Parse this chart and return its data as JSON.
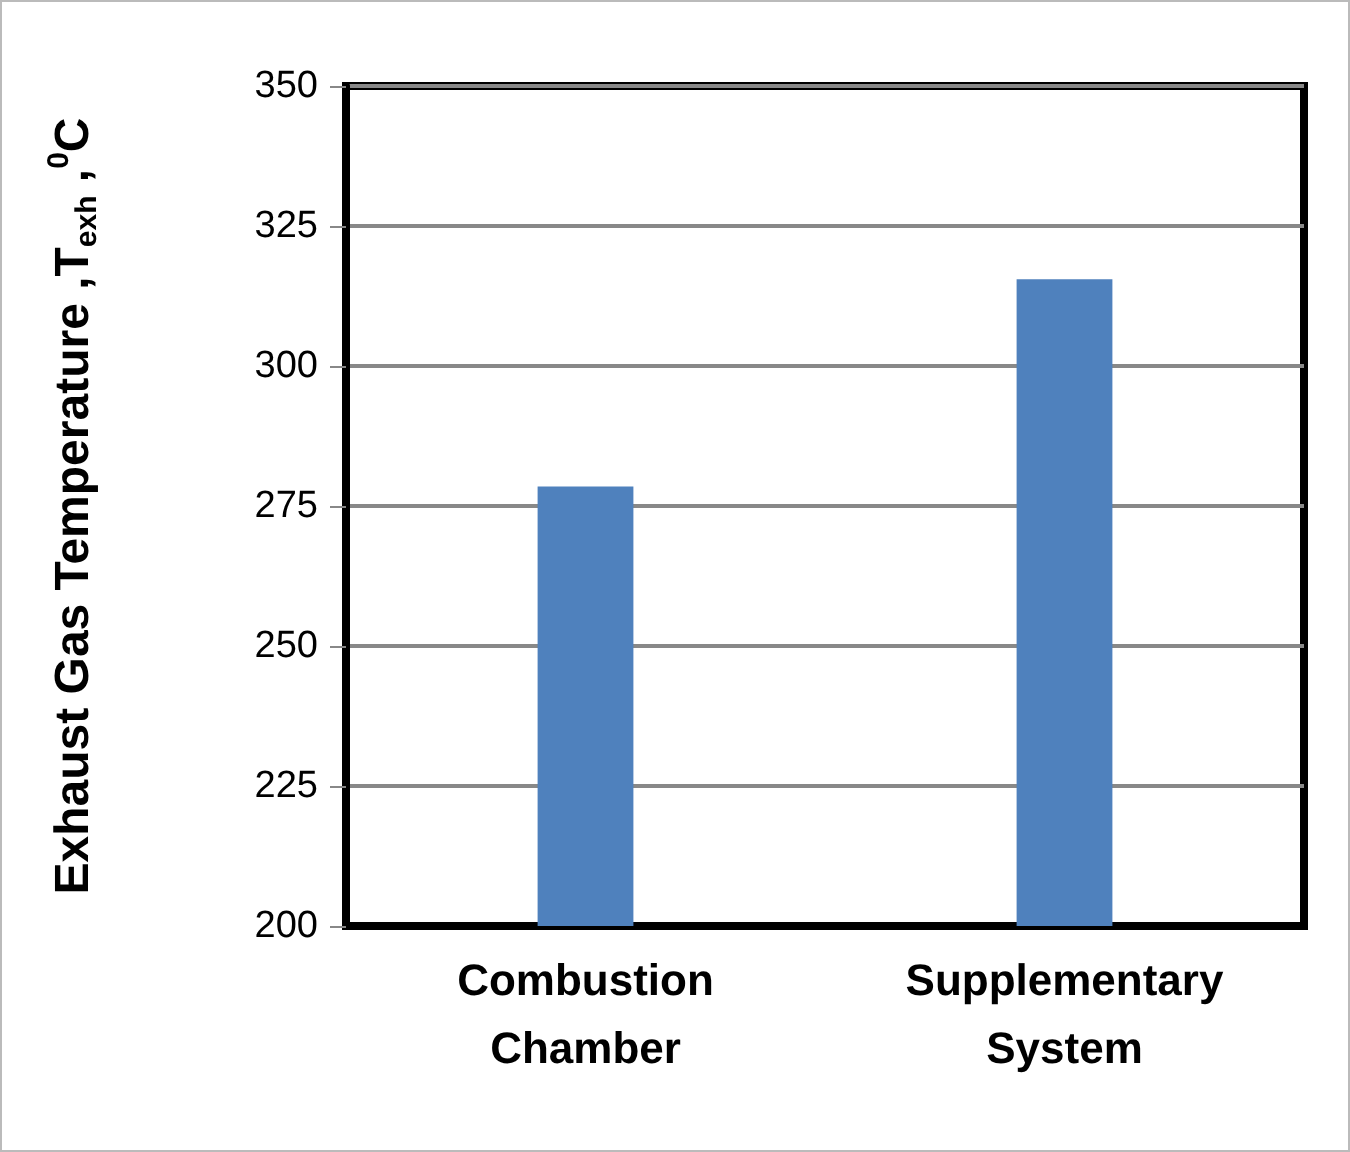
{
  "chart_data": {
    "type": "bar",
    "ylabel": "Exhaust Gas Temperature ,T$_{exh}$ ,$^{0}$C",
    "categories": [
      "Combustion\nChamber",
      "Supplementary\nSystem"
    ],
    "values": [
      278.5,
      315.5
    ],
    "color": "#4f81bd",
    "ylim": [
      200,
      350
    ],
    "yticks": [
      200,
      225,
      250,
      275,
      300,
      325,
      350
    ],
    "grid": "y"
  }
}
